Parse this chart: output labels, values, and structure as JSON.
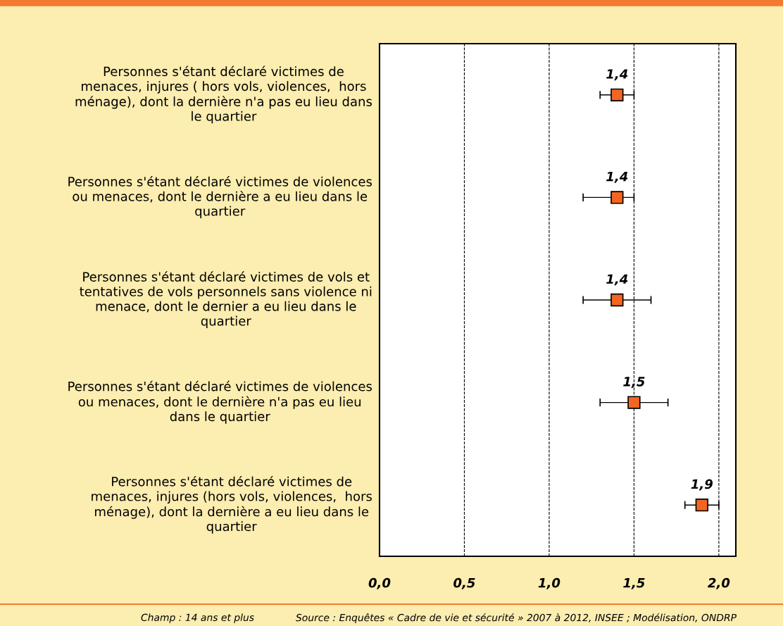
{
  "chart_data": {
    "type": "scatter",
    "orientation": "horizontal",
    "categories": [
      "Personnes s'étant déclaré victimes de\nmenaces, injures ( hors vols, violences,  hors\nménage), dont la dernière n'a pas eu lieu dans\nle quartier",
      "Personnes s'étant déclaré victimes de violences\nou menaces, dont le dernière a eu lieu dans le\nquartier",
      "Personnes s'étant déclaré victimes de vols et\ntentatives de vols personnels sans violence ni\nmenace, dont le dernier a eu lieu dans le\nquartier",
      "Personnes s'étant déclaré victimes de violences\nou menaces, dont le dernière n'a pas eu lieu\ndans le quartier",
      "Personnes s'étant déclaré victimes de\nmenaces, injures (hors vols, violences,  hors\nménage), dont la dernière a eu lieu dans le\nquartier"
    ],
    "values": [
      1.4,
      1.4,
      1.4,
      1.5,
      1.9
    ],
    "errors": [
      [
        1.3,
        1.5
      ],
      [
        1.2,
        1.5
      ],
      [
        1.2,
        1.6
      ],
      [
        1.3,
        1.7
      ],
      [
        1.8,
        2.0
      ]
    ],
    "value_labels": [
      "1,4",
      "1,4",
      "1,4",
      "1,5",
      "1,9"
    ],
    "color": "#f26522",
    "marker": "square",
    "xlim": [
      0,
      2.1
    ],
    "xticks": [
      {
        "value": 0,
        "label": "0,0"
      },
      {
        "value": 0.5,
        "label": "0,5"
      },
      {
        "value": 1.0,
        "label": "1,0"
      },
      {
        "value": 1.5,
        "label": "1,5"
      },
      {
        "value": 2.0,
        "label": "2,0"
      }
    ],
    "grid": "x",
    "annotations": [
      "Champ : 14 ans et plus",
      "Source : Enquêtes « Cadre de vie et sécurité » 2007 à 2012, INSEE ; Modélisation, ONDRP"
    ]
  }
}
